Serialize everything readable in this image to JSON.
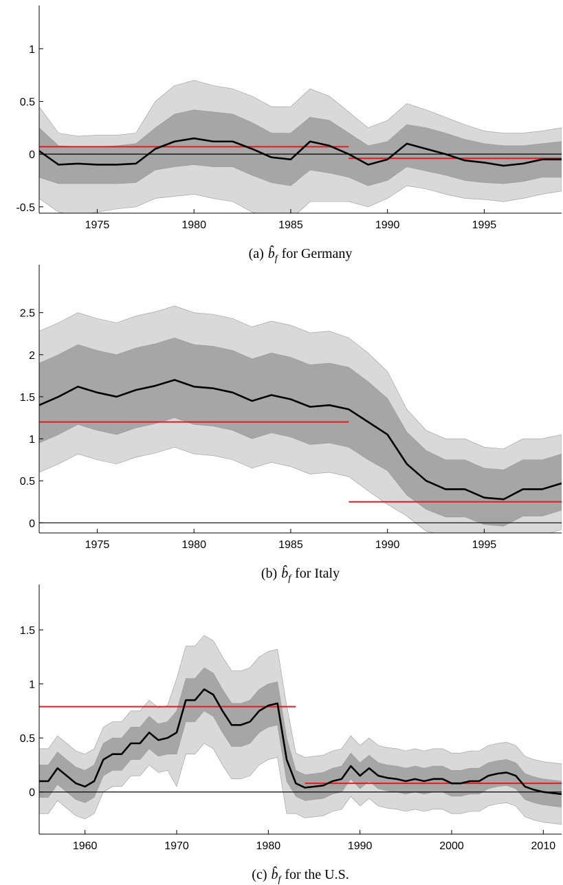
{
  "chart_data": [
    {
      "type": "band-line",
      "caption": "(a)",
      "estimate_symbol": "b̂",
      "estimate_subscript": "f",
      "caption_text": "for Germany",
      "color": "#000000",
      "segment_color": "#e41a1c",
      "reference_line": 0,
      "xlim": [
        1972,
        1999
      ],
      "xticks": [
        1975,
        1980,
        1985,
        1990,
        1995
      ],
      "ylim": [
        -0.56,
        1.41
      ],
      "yticks": [
        -0.5,
        0,
        0.5,
        1
      ],
      "x": [
        1972,
        1973,
        1974,
        1975,
        1976,
        1977,
        1978,
        1979,
        1980,
        1981,
        1982,
        1983,
        1984,
        1985,
        1986,
        1987,
        1988,
        1989,
        1990,
        1991,
        1992,
        1993,
        1994,
        1995,
        1996,
        1997,
        1998,
        1999
      ],
      "values": [
        0.03,
        -0.1,
        -0.09,
        -0.1,
        -0.1,
        -0.09,
        0.05,
        0.12,
        0.15,
        0.12,
        0.12,
        0.05,
        -0.03,
        -0.05,
        0.12,
        0.08,
        0.0,
        -0.1,
        -0.05,
        0.1,
        0.05,
        0.0,
        -0.06,
        -0.08,
        -0.11,
        -0.09,
        -0.05,
        -0.05
      ],
      "bands": [
        {
          "color": "#d9d9d9",
          "upper": [
            0.45,
            0.2,
            0.17,
            0.18,
            0.18,
            0.2,
            0.5,
            0.65,
            0.7,
            0.65,
            0.62,
            0.55,
            0.45,
            0.45,
            0.62,
            0.55,
            0.4,
            0.25,
            0.32,
            0.48,
            0.42,
            0.35,
            0.28,
            0.22,
            0.2,
            0.2,
            0.22,
            0.25
          ],
          "lower": [
            -0.42,
            -0.55,
            -0.58,
            -0.55,
            -0.52,
            -0.5,
            -0.42,
            -0.4,
            -0.38,
            -0.42,
            -0.45,
            -0.55,
            -0.6,
            -0.62,
            -0.45,
            -0.45,
            -0.45,
            -0.5,
            -0.42,
            -0.3,
            -0.33,
            -0.38,
            -0.42,
            -0.43,
            -0.45,
            -0.42,
            -0.38,
            -0.35
          ]
        },
        {
          "color": "#a6a6a6",
          "upper": [
            0.25,
            0.08,
            0.07,
            0.07,
            0.08,
            0.1,
            0.25,
            0.38,
            0.42,
            0.4,
            0.38,
            0.3,
            0.2,
            0.2,
            0.35,
            0.32,
            0.2,
            0.08,
            0.12,
            0.28,
            0.25,
            0.2,
            0.14,
            0.1,
            0.08,
            0.08,
            0.1,
            0.12
          ],
          "lower": [
            -0.22,
            -0.28,
            -0.28,
            -0.28,
            -0.28,
            -0.27,
            -0.15,
            -0.12,
            -0.1,
            -0.12,
            -0.12,
            -0.2,
            -0.27,
            -0.3,
            -0.15,
            -0.18,
            -0.22,
            -0.3,
            -0.25,
            -0.12,
            -0.16,
            -0.2,
            -0.25,
            -0.27,
            -0.28,
            -0.26,
            -0.22,
            -0.22
          ]
        }
      ],
      "segments": [
        {
          "x": [
            1972,
            1988
          ],
          "value": 0.07
        },
        {
          "x": [
            1988,
            1999
          ],
          "value": -0.04
        }
      ]
    },
    {
      "type": "band-line",
      "caption": "(b)",
      "estimate_symbol": "b̂",
      "estimate_subscript": "f",
      "caption_text": "for Italy",
      "color": "#000000",
      "segment_color": "#e41a1c",
      "reference_line": 0,
      "xlim": [
        1972,
        1999
      ],
      "xticks": [
        1975,
        1980,
        1985,
        1990,
        1995
      ],
      "ylim": [
        -0.12,
        3.07
      ],
      "yticks": [
        0,
        0.5,
        1,
        1.5,
        2,
        2.5
      ],
      "x": [
        1972,
        1973,
        1974,
        1975,
        1976,
        1977,
        1978,
        1979,
        1980,
        1981,
        1982,
        1983,
        1984,
        1985,
        1986,
        1987,
        1988,
        1989,
        1990,
        1991,
        1992,
        1993,
        1994,
        1995,
        1996,
        1997,
        1998,
        1999
      ],
      "values": [
        1.4,
        1.5,
        1.62,
        1.55,
        1.5,
        1.58,
        1.63,
        1.7,
        1.62,
        1.6,
        1.55,
        1.45,
        1.52,
        1.47,
        1.38,
        1.4,
        1.35,
        1.2,
        1.05,
        0.7,
        0.5,
        0.4,
        0.4,
        0.3,
        0.28,
        0.4,
        0.4,
        0.47
      ],
      "bands": [
        {
          "color": "#d9d9d9",
          "upper": [
            2.28,
            2.38,
            2.5,
            2.43,
            2.38,
            2.46,
            2.51,
            2.58,
            2.5,
            2.48,
            2.43,
            2.33,
            2.4,
            2.35,
            2.26,
            2.28,
            2.2,
            2.02,
            1.8,
            1.35,
            1.1,
            1.0,
            1.0,
            0.9,
            0.88,
            1.0,
            1.0,
            1.05
          ],
          "lower": [
            0.6,
            0.7,
            0.82,
            0.75,
            0.7,
            0.78,
            0.83,
            0.9,
            0.82,
            0.8,
            0.75,
            0.65,
            0.72,
            0.67,
            0.58,
            0.6,
            0.55,
            0.38,
            0.22,
            0.08,
            -0.1,
            -0.15,
            -0.15,
            -0.25,
            -0.27,
            -0.15,
            -0.15,
            -0.08
          ]
        },
        {
          "color": "#a6a6a6",
          "upper": [
            1.9,
            2.0,
            2.12,
            2.05,
            2.0,
            2.08,
            2.13,
            2.2,
            2.12,
            2.1,
            2.05,
            1.95,
            2.02,
            1.97,
            1.88,
            1.9,
            1.85,
            1.68,
            1.48,
            1.08,
            0.86,
            0.75,
            0.75,
            0.65,
            0.63,
            0.75,
            0.75,
            0.82
          ],
          "lower": [
            0.95,
            1.05,
            1.17,
            1.1,
            1.05,
            1.13,
            1.18,
            1.25,
            1.17,
            1.15,
            1.1,
            1.0,
            1.07,
            1.02,
            0.93,
            0.95,
            0.9,
            0.75,
            0.62,
            0.33,
            0.16,
            0.07,
            0.07,
            -0.02,
            -0.04,
            0.08,
            0.08,
            0.15
          ]
        }
      ],
      "segments": [
        {
          "x": [
            1972,
            1988
          ],
          "value": 1.2
        },
        {
          "x": [
            1988,
            1999
          ],
          "value": 0.25
        }
      ]
    },
    {
      "type": "band-line",
      "caption": "(c)",
      "estimate_symbol": "b̂",
      "estimate_subscript": "f",
      "caption_text": "for the U.S.",
      "color": "#000000",
      "segment_color": "#e41a1c",
      "reference_line": 0,
      "xlim": [
        1955,
        2012
      ],
      "xticks": [
        1960,
        1970,
        1980,
        1990,
        2000,
        2010
      ],
      "ylim": [
        -0.39,
        1.92
      ],
      "yticks": [
        0,
        0.5,
        1,
        1.5
      ],
      "x": [
        1955,
        1956,
        1957,
        1958,
        1959,
        1960,
        1961,
        1962,
        1963,
        1964,
        1965,
        1966,
        1967,
        1968,
        1969,
        1970,
        1971,
        1972,
        1973,
        1974,
        1975,
        1976,
        1977,
        1978,
        1979,
        1980,
        1981,
        1982,
        1983,
        1984,
        1985,
        1986,
        1987,
        1988,
        1989,
        1990,
        1991,
        1992,
        1993,
        1994,
        1995,
        1996,
        1997,
        1998,
        1999,
        2000,
        2001,
        2002,
        2003,
        2004,
        2005,
        2006,
        2007,
        2008,
        2009,
        2010,
        2011,
        2012
      ],
      "values": [
        0.1,
        0.1,
        0.22,
        0.15,
        0.08,
        0.05,
        0.1,
        0.3,
        0.35,
        0.35,
        0.45,
        0.45,
        0.55,
        0.48,
        0.5,
        0.55,
        0.85,
        0.85,
        0.95,
        0.9,
        0.75,
        0.62,
        0.62,
        0.65,
        0.75,
        0.8,
        0.82,
        0.3,
        0.08,
        0.04,
        0.05,
        0.06,
        0.1,
        0.12,
        0.24,
        0.15,
        0.22,
        0.15,
        0.13,
        0.12,
        0.1,
        0.12,
        0.1,
        0.12,
        0.12,
        0.08,
        0.08,
        0.1,
        0.1,
        0.15,
        0.17,
        0.18,
        0.15,
        0.05,
        0.02,
        0.0,
        -0.01,
        -0.02
      ],
      "bands": [
        {
          "color": "#d9d9d9",
          "upper": [
            0.4,
            0.4,
            0.52,
            0.45,
            0.38,
            0.35,
            0.4,
            0.6,
            0.65,
            0.65,
            0.75,
            0.75,
            0.85,
            0.78,
            0.8,
            1.05,
            1.35,
            1.35,
            1.45,
            1.4,
            1.25,
            1.12,
            1.12,
            1.15,
            1.25,
            1.3,
            1.32,
            0.8,
            0.36,
            0.32,
            0.33,
            0.34,
            0.38,
            0.4,
            0.52,
            0.43,
            0.5,
            0.43,
            0.41,
            0.4,
            0.38,
            0.4,
            0.38,
            0.4,
            0.4,
            0.36,
            0.36,
            0.38,
            0.38,
            0.43,
            0.45,
            0.46,
            0.43,
            0.33,
            0.3,
            0.28,
            0.27,
            0.26
          ],
          "lower": [
            -0.2,
            -0.2,
            -0.08,
            -0.15,
            -0.22,
            -0.25,
            -0.2,
            0.0,
            0.05,
            0.05,
            0.15,
            0.15,
            0.25,
            0.18,
            0.2,
            0.05,
            0.35,
            0.35,
            0.45,
            0.4,
            0.25,
            0.12,
            0.12,
            0.15,
            0.25,
            0.3,
            0.32,
            -0.2,
            -0.2,
            -0.24,
            -0.23,
            -0.22,
            -0.18,
            -0.16,
            -0.04,
            -0.13,
            -0.06,
            -0.13,
            -0.15,
            -0.16,
            -0.18,
            -0.16,
            -0.18,
            -0.16,
            -0.16,
            -0.2,
            -0.2,
            -0.18,
            -0.18,
            -0.13,
            -0.11,
            -0.1,
            -0.13,
            -0.23,
            -0.26,
            -0.28,
            -0.29,
            -0.3
          ]
        },
        {
          "color": "#a6a6a6",
          "upper": [
            0.25,
            0.25,
            0.37,
            0.3,
            0.23,
            0.2,
            0.25,
            0.45,
            0.5,
            0.5,
            0.6,
            0.6,
            0.7,
            0.63,
            0.65,
            0.75,
            1.05,
            1.05,
            1.15,
            1.1,
            0.95,
            0.82,
            0.82,
            0.85,
            0.95,
            1.0,
            1.02,
            0.5,
            0.2,
            0.16,
            0.17,
            0.18,
            0.22,
            0.24,
            0.36,
            0.27,
            0.34,
            0.27,
            0.25,
            0.24,
            0.22,
            0.24,
            0.22,
            0.24,
            0.24,
            0.2,
            0.2,
            0.22,
            0.22,
            0.27,
            0.29,
            0.3,
            0.27,
            0.17,
            0.14,
            0.12,
            0.11,
            0.1
          ],
          "lower": [
            -0.05,
            -0.05,
            0.07,
            0.0,
            -0.07,
            -0.1,
            -0.05,
            0.15,
            0.2,
            0.2,
            0.3,
            0.3,
            0.4,
            0.33,
            0.35,
            0.35,
            0.65,
            0.65,
            0.75,
            0.7,
            0.55,
            0.42,
            0.42,
            0.45,
            0.55,
            0.6,
            0.62,
            0.1,
            -0.04,
            -0.08,
            -0.07,
            -0.06,
            -0.02,
            0.0,
            0.12,
            0.03,
            0.1,
            0.03,
            0.01,
            0.0,
            -0.02,
            0.0,
            -0.02,
            0.0,
            0.0,
            -0.04,
            -0.04,
            -0.02,
            -0.02,
            0.03,
            0.05,
            0.06,
            0.03,
            -0.07,
            -0.1,
            -0.12,
            -0.13,
            -0.14
          ]
        }
      ],
      "segments": [
        {
          "x": [
            1955,
            1983
          ],
          "value": 0.79
        },
        {
          "x": [
            1984,
            2012
          ],
          "value": 0.08
        }
      ]
    }
  ]
}
